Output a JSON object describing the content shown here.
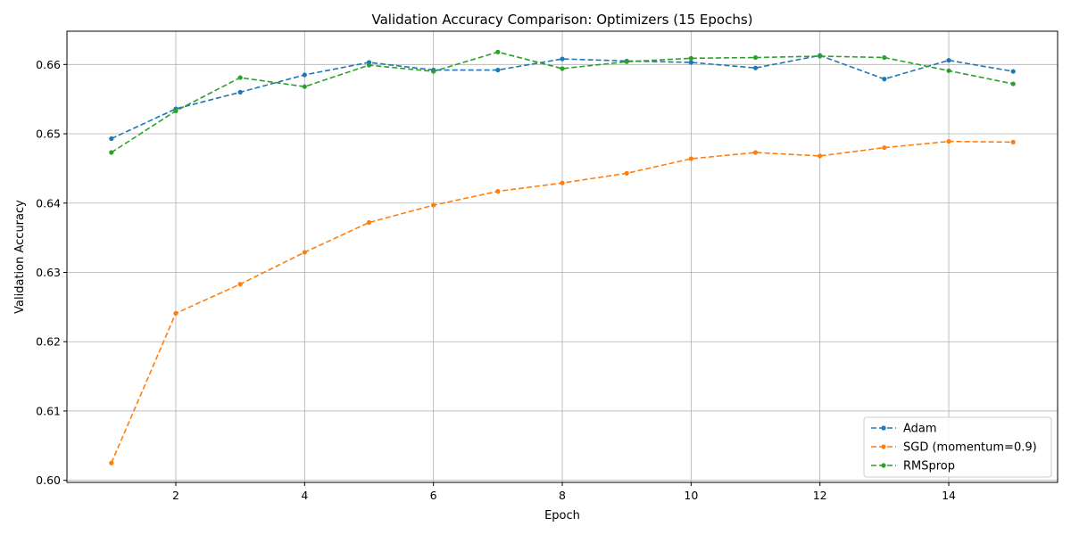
{
  "chart_data": {
    "type": "line",
    "title": "Validation Accuracy Comparison: Optimizers (15 Epochs)",
    "xlabel": "Epoch",
    "ylabel": "Validation Accuracy",
    "xlim": [
      0.31,
      15.69
    ],
    "ylim": [
      0.5997,
      0.6648
    ],
    "xticks": [
      2,
      4,
      6,
      8,
      10,
      12,
      14
    ],
    "yticks": [
      0.6,
      0.61,
      0.62,
      0.63,
      0.64,
      0.65,
      0.66
    ],
    "ytick_labels": [
      "0.60",
      "0.61",
      "0.62",
      "0.63",
      "0.64",
      "0.65",
      "0.66"
    ],
    "grid": true,
    "legend_position": "lower-right",
    "x": [
      1,
      2,
      3,
      4,
      5,
      6,
      7,
      8,
      9,
      10,
      11,
      12,
      13,
      14,
      15
    ],
    "series": [
      {
        "name": "Adam",
        "color": "#1f77b4",
        "values": [
          0.6493,
          0.6536,
          0.656,
          0.6585,
          0.6603,
          0.6592,
          0.6592,
          0.6608,
          0.6605,
          0.6603,
          0.6595,
          0.6613,
          0.6579,
          0.6606,
          0.659
        ]
      },
      {
        "name": "SGD (momentum=0.9)",
        "color": "#ff7f0e",
        "values": [
          0.6025,
          0.6241,
          0.6283,
          0.6329,
          0.6372,
          0.6397,
          0.6417,
          0.6429,
          0.6443,
          0.6464,
          0.6473,
          0.6468,
          0.648,
          0.6489,
          0.6488
        ]
      },
      {
        "name": "RMSprop",
        "color": "#2ca02c",
        "values": [
          0.6473,
          0.6533,
          0.6581,
          0.6568,
          0.6599,
          0.659,
          0.6618,
          0.6594,
          0.6604,
          0.6609,
          0.661,
          0.6612,
          0.661,
          0.6591,
          0.6572
        ]
      }
    ]
  }
}
